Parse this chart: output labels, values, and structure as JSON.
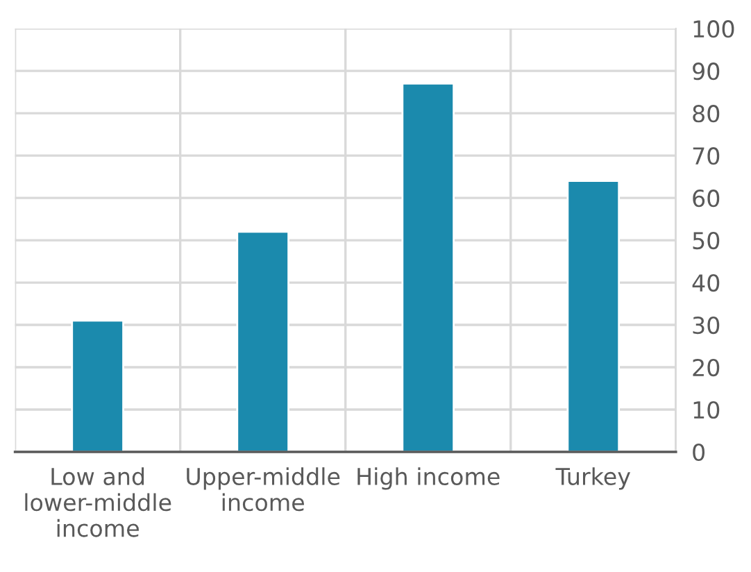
{
  "chart_data": {
    "type": "bar",
    "categories": [
      "Low and\nlower-middle\nincome",
      "Upper-middle\nincome",
      "High income",
      "Turkey"
    ],
    "values": [
      31,
      52,
      87,
      64
    ],
    "color": "#1b8aad",
    "ylim": [
      0,
      100
    ],
    "yticks": [
      0,
      10,
      20,
      30,
      40,
      50,
      60,
      70,
      80,
      90,
      100
    ],
    "grid": true
  }
}
